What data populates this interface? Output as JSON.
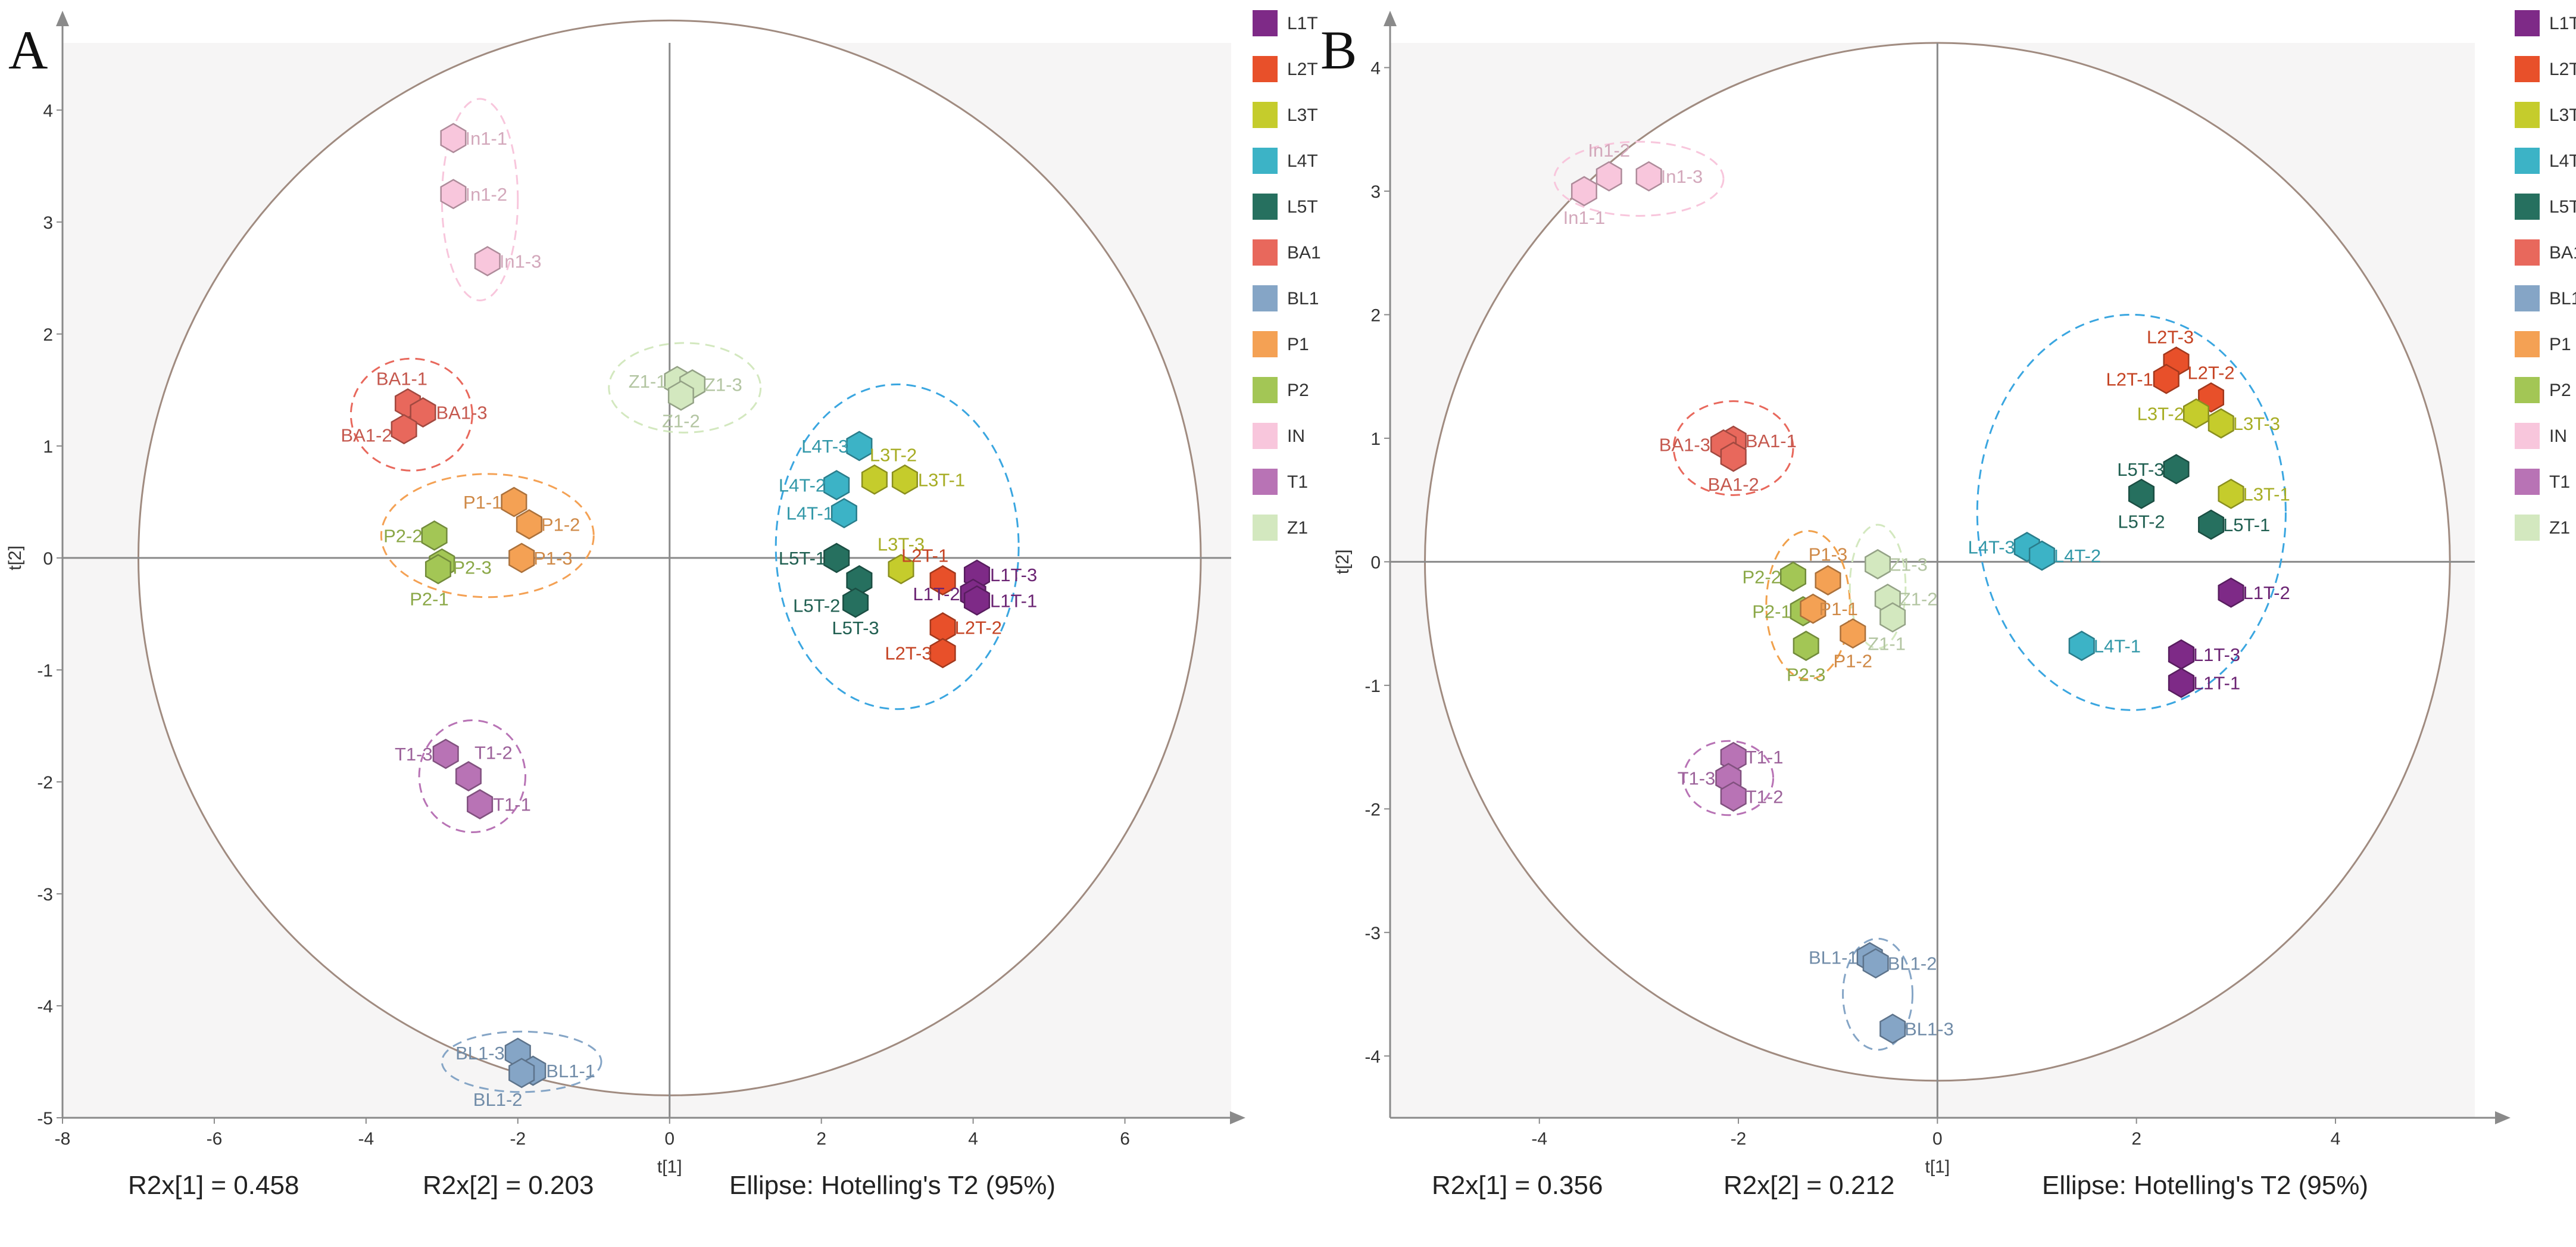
{
  "legend": [
    {
      "label": "L1T",
      "color": "#7e2a87"
    },
    {
      "label": "L2T",
      "color": "#e8502a"
    },
    {
      "label": "L3T",
      "color": "#c5cc2c"
    },
    {
      "label": "L4T",
      "color": "#3cb3c6"
    },
    {
      "label": "L5T",
      "color": "#26705f"
    },
    {
      "label": "BA1",
      "color": "#e8685c"
    },
    {
      "label": "BL1",
      "color": "#85a5c6"
    },
    {
      "label": "P1",
      "color": "#f4a154"
    },
    {
      "label": "P2",
      "color": "#a3c655"
    },
    {
      "label": "IN",
      "color": "#f8c6dc"
    },
    {
      "label": "T1",
      "color": "#b873b5"
    },
    {
      "label": "Z1",
      "color": "#d3e8bf"
    }
  ],
  "chart_data": [
    {
      "panel": "A",
      "type": "scatter",
      "xlabel": "t[1]",
      "ylabel": "t[2]",
      "xlim": [
        -8,
        7.4
      ],
      "ylim": [
        -5,
        4.6
      ],
      "xticks": [
        -8,
        -6,
        -4,
        -2,
        0,
        2,
        4,
        6
      ],
      "yticks": [
        -5,
        -4,
        -3,
        -2,
        -1,
        0,
        1,
        2,
        3,
        4
      ],
      "hotelling_ellipse": {
        "center": [
          0,
          0
        ],
        "radius_x": 7.0,
        "radius_y": 4.8
      },
      "footer": {
        "r2x1": "R2x[1] = 0.458",
        "r2x2": "R2x[2] = 0.203",
        "ellipse": "Ellipse:  Hotelling's   T2  (95%)"
      },
      "group_ellipses": [
        {
          "group": "IN",
          "cx": -2.5,
          "cy": 3.2,
          "rx": 0.5,
          "ry": 0.9
        },
        {
          "group": "BA1",
          "cx": -3.4,
          "cy": 1.28,
          "rx": 0.8,
          "ry": 0.5
        },
        {
          "group": "P1",
          "cx": -2.4,
          "cy": 0.2,
          "rx": 1.4,
          "ry": 0.55
        },
        {
          "group": "Z1",
          "cx": 0.2,
          "cy": 1.52,
          "rx": 1.0,
          "ry": 0.4
        },
        {
          "group": "L",
          "cx": 3.0,
          "cy": 0.1,
          "rx": 1.6,
          "ry": 1.45
        },
        {
          "group": "T1",
          "cx": -2.6,
          "cy": -1.95,
          "rx": 0.7,
          "ry": 0.5
        },
        {
          "group": "BL1",
          "cx": -1.95,
          "cy": -4.5,
          "rx": 1.05,
          "ry": 0.27
        }
      ],
      "points": [
        {
          "label": "In1-1",
          "group": "IN",
          "x": -2.85,
          "y": 3.75,
          "lx": 20,
          "ly": 0,
          "anchor": "start"
        },
        {
          "label": "In1-2",
          "group": "IN",
          "x": -2.85,
          "y": 3.25,
          "lx": 20,
          "ly": 0,
          "anchor": "start"
        },
        {
          "label": "In1-3",
          "group": "IN",
          "x": -2.4,
          "y": 2.65,
          "lx": 20,
          "ly": 0,
          "anchor": "start"
        },
        {
          "label": "BA1-1",
          "group": "BA1",
          "x": -3.45,
          "y": 1.38,
          "lx": -10,
          "ly": -42,
          "anchor": "middle"
        },
        {
          "label": "BA1-3",
          "group": "BA1",
          "x": -3.25,
          "y": 1.3,
          "lx": 22,
          "ly": 0,
          "anchor": "start"
        },
        {
          "label": "BA1-2",
          "group": "BA1",
          "x": -3.5,
          "y": 1.15,
          "lx": -20,
          "ly": 10,
          "anchor": "end"
        },
        {
          "label": "P1-1",
          "group": "P1",
          "x": -2.05,
          "y": 0.5,
          "lx": -20,
          "ly": 0,
          "anchor": "end"
        },
        {
          "label": "P1-2",
          "group": "P1",
          "x": -1.85,
          "y": 0.3,
          "lx": 20,
          "ly": 0,
          "anchor": "start"
        },
        {
          "label": "P1-3",
          "group": "P1",
          "x": -1.95,
          "y": 0.0,
          "lx": 20,
          "ly": 0,
          "anchor": "start"
        },
        {
          "label": "P2-2",
          "group": "P2",
          "x": -3.1,
          "y": 0.2,
          "lx": -20,
          "ly": 0,
          "anchor": "end"
        },
        {
          "label": "P2-3",
          "group": "P2",
          "x": -3.0,
          "y": -0.05,
          "lx": 18,
          "ly": 6,
          "anchor": "start"
        },
        {
          "label": "P2-1",
          "group": "P2",
          "x": -3.05,
          "y": -0.1,
          "lx": -15,
          "ly": 50,
          "anchor": "middle"
        },
        {
          "label": "Z1-1",
          "group": "Z1",
          "x": 0.1,
          "y": 1.58,
          "lx": -18,
          "ly": 0,
          "anchor": "end"
        },
        {
          "label": "Z1-3",
          "group": "Z1",
          "x": 0.3,
          "y": 1.55,
          "lx": 20,
          "ly": 0,
          "anchor": "start"
        },
        {
          "label": "Z1-2",
          "group": "Z1",
          "x": 0.15,
          "y": 1.45,
          "lx": 0,
          "ly": 42,
          "anchor": "middle"
        },
        {
          "label": "L4T-3",
          "group": "L4T",
          "x": 2.5,
          "y": 1.0,
          "lx": -18,
          "ly": 0,
          "anchor": "end"
        },
        {
          "label": "L4T-2",
          "group": "L4T",
          "x": 2.2,
          "y": 0.65,
          "lx": -18,
          "ly": 0,
          "anchor": "end"
        },
        {
          "label": "L4T-1",
          "group": "L4T",
          "x": 2.3,
          "y": 0.4,
          "lx": -18,
          "ly": 0,
          "anchor": "end"
        },
        {
          "label": "L3T-2",
          "group": "L3T",
          "x": 2.7,
          "y": 0.7,
          "lx": -8,
          "ly": -42,
          "anchor": "start"
        },
        {
          "label": "L3T-1",
          "group": "L3T",
          "x": 3.1,
          "y": 0.7,
          "lx": 22,
          "ly": 0,
          "anchor": "start"
        },
        {
          "label": "L3T-3",
          "group": "L3T",
          "x": 3.05,
          "y": -0.1,
          "lx": 0,
          "ly": -42,
          "anchor": "middle"
        },
        {
          "label": "L5T-1",
          "group": "L5T",
          "x": 2.2,
          "y": 0.0,
          "lx": -18,
          "ly": 0,
          "anchor": "end"
        },
        {
          "label": "L5T-2",
          "group": "L5T",
          "x": 2.5,
          "y": -0.2,
          "lx": -32,
          "ly": 42,
          "anchor": "end"
        },
        {
          "label": "L5T-3",
          "group": "L5T",
          "x": 2.45,
          "y": -0.4,
          "lx": 0,
          "ly": 42,
          "anchor": "middle"
        },
        {
          "label": "L2T-1",
          "group": "L2T",
          "x": 3.6,
          "y": -0.2,
          "lx": -30,
          "ly": -42,
          "anchor": "middle"
        },
        {
          "label": "L2T-2",
          "group": "L2T",
          "x": 3.6,
          "y": -0.62,
          "lx": 20,
          "ly": 0,
          "anchor": "start"
        },
        {
          "label": "L2T-3",
          "group": "L2T",
          "x": 3.6,
          "y": -0.85,
          "lx": -18,
          "ly": 0,
          "anchor": "end"
        },
        {
          "label": "L1T-3",
          "group": "L1T",
          "x": 4.05,
          "y": -0.15,
          "lx": 22,
          "ly": 0,
          "anchor": "start"
        },
        {
          "label": "L1T-2",
          "group": "L1T",
          "x": 4.0,
          "y": -0.32,
          "lx": -22,
          "ly": 0,
          "anchor": "end"
        },
        {
          "label": "L1T-1",
          "group": "L1T",
          "x": 4.05,
          "y": -0.38,
          "lx": 22,
          "ly": 0,
          "anchor": "start"
        },
        {
          "label": "T1-3",
          "group": "T1",
          "x": -2.95,
          "y": -1.75,
          "lx": -22,
          "ly": 0,
          "anchor": "end"
        },
        {
          "label": "T1-2",
          "group": "T1",
          "x": -2.65,
          "y": -1.95,
          "lx": 10,
          "ly": -40,
          "anchor": "start"
        },
        {
          "label": "T1-1",
          "group": "T1",
          "x": -2.5,
          "y": -2.2,
          "lx": 22,
          "ly": 0,
          "anchor": "start"
        },
        {
          "label": "BL1-3",
          "group": "BL1",
          "x": -2.0,
          "y": -4.42,
          "lx": -22,
          "ly": 0,
          "anchor": "end"
        },
        {
          "label": "BL1-1",
          "group": "BL1",
          "x": -1.8,
          "y": -4.58,
          "lx": 22,
          "ly": 0,
          "anchor": "start"
        },
        {
          "label": "BL1-2",
          "group": "BL1",
          "x": -1.95,
          "y": -4.6,
          "lx": -40,
          "ly": 44,
          "anchor": "middle"
        }
      ]
    },
    {
      "panel": "B",
      "type": "scatter",
      "xlabel": "t[1]",
      "ylabel": "t[2]",
      "xlim": [
        -5.5,
        5.4
      ],
      "ylim": [
        -4.5,
        4.2
      ],
      "xticks": [
        -4,
        -2,
        0,
        2,
        4
      ],
      "yticks": [
        -4,
        -3,
        -2,
        -1,
        0,
        1,
        2,
        3,
        4
      ],
      "hotelling_ellipse": {
        "center": [
          0,
          0
        ],
        "radius_x": 5.15,
        "radius_y": 4.2
      },
      "footer": {
        "r2x1": "R2x[1] = 0.356",
        "r2x2": "R2x[2] = 0.212",
        "ellipse": "Ellipse:  Hotelling's   T2  (95%)"
      },
      "group_ellipses": [
        {
          "group": "IN",
          "cx": -3.0,
          "cy": 3.1,
          "rx": 0.85,
          "ry": 0.3
        },
        {
          "group": "BA1",
          "cx": -2.05,
          "cy": 0.92,
          "rx": 0.6,
          "ry": 0.38
        },
        {
          "group": "P",
          "cx": -1.3,
          "cy": -0.35,
          "rx": 0.42,
          "ry": 0.6
        },
        {
          "group": "Z1",
          "cx": -0.6,
          "cy": -0.2,
          "rx": 0.28,
          "ry": 0.5
        },
        {
          "group": "L",
          "cx": 1.95,
          "cy": 0.4,
          "rx": 1.55,
          "ry": 1.6
        },
        {
          "group": "T1",
          "cx": -2.1,
          "cy": -1.75,
          "rx": 0.45,
          "ry": 0.3
        },
        {
          "group": "BL1",
          "cx": -0.6,
          "cy": -3.5,
          "rx": 0.35,
          "ry": 0.45
        }
      ],
      "points": [
        {
          "label": "In1-2",
          "group": "IN",
          "x": -3.3,
          "y": 3.12,
          "lx": 0,
          "ly": -44,
          "anchor": "middle"
        },
        {
          "label": "In1-3",
          "group": "IN",
          "x": -2.9,
          "y": 3.12,
          "lx": 20,
          "ly": 0,
          "anchor": "start"
        },
        {
          "label": "In1-1",
          "group": "IN",
          "x": -3.55,
          "y": 3.0,
          "lx": 0,
          "ly": 44,
          "anchor": "middle"
        },
        {
          "label": "BA1-1",
          "group": "BA1",
          "x": -2.05,
          "y": 0.98,
          "lx": 20,
          "ly": 0,
          "anchor": "start"
        },
        {
          "label": "BA1-3",
          "group": "BA1",
          "x": -2.15,
          "y": 0.95,
          "lx": -22,
          "ly": 0,
          "anchor": "end"
        },
        {
          "label": "BA1-2",
          "group": "BA1",
          "x": -2.05,
          "y": 0.85,
          "lx": 0,
          "ly": 46,
          "anchor": "middle"
        },
        {
          "label": "P2-2",
          "group": "P2",
          "x": -1.45,
          "y": -0.12,
          "lx": -20,
          "ly": 0,
          "anchor": "end"
        },
        {
          "label": "P1-3",
          "group": "P1",
          "x": -1.1,
          "y": -0.15,
          "lx": 0,
          "ly": -44,
          "anchor": "middle"
        },
        {
          "label": "P2-1",
          "group": "P2",
          "x": -1.35,
          "y": -0.4,
          "lx": -20,
          "ly": 0,
          "anchor": "end"
        },
        {
          "label": "P1-1",
          "group": "P1",
          "x": -1.25,
          "y": -0.38,
          "lx": 10,
          "ly": 0,
          "anchor": "start"
        },
        {
          "label": "P1-2",
          "group": "P1",
          "x": -0.85,
          "y": -0.58,
          "lx": 0,
          "ly": 46,
          "anchor": "middle"
        },
        {
          "label": "P2-3",
          "group": "P2",
          "x": -1.32,
          "y": -0.68,
          "lx": 0,
          "ly": 48,
          "anchor": "middle"
        },
        {
          "label": "Z1-3",
          "group": "Z1",
          "x": -0.6,
          "y": -0.02,
          "lx": 20,
          "ly": 0,
          "anchor": "start"
        },
        {
          "label": "Z1-2",
          "group": "Z1",
          "x": -0.5,
          "y": -0.3,
          "lx": 20,
          "ly": 0,
          "anchor": "start"
        },
        {
          "label": "Z1-1",
          "group": "Z1",
          "x": -0.45,
          "y": -0.45,
          "lx": -10,
          "ly": 44,
          "anchor": "middle"
        },
        {
          "label": "L2T-3",
          "group": "L2T",
          "x": 2.4,
          "y": 1.62,
          "lx": -10,
          "ly": -42,
          "anchor": "middle"
        },
        {
          "label": "L2T-1",
          "group": "L2T",
          "x": 2.3,
          "y": 1.48,
          "lx": -22,
          "ly": 0,
          "anchor": "end"
        },
        {
          "label": "L2T-2",
          "group": "L2T",
          "x": 2.75,
          "y": 1.33,
          "lx": 0,
          "ly": -42,
          "anchor": "middle"
        },
        {
          "label": "L3T-2",
          "group": "L3T",
          "x": 2.6,
          "y": 1.2,
          "lx": -20,
          "ly": 0,
          "anchor": "end"
        },
        {
          "label": "L3T-3",
          "group": "L3T",
          "x": 2.85,
          "y": 1.12,
          "lx": 20,
          "ly": 0,
          "anchor": "start"
        },
        {
          "label": "L5T-3",
          "group": "L5T",
          "x": 2.4,
          "y": 0.75,
          "lx": -20,
          "ly": 0,
          "anchor": "end"
        },
        {
          "label": "L5T-2",
          "group": "L5T",
          "x": 2.05,
          "y": 0.55,
          "lx": 0,
          "ly": 46,
          "anchor": "middle"
        },
        {
          "label": "L3T-1",
          "group": "L3T",
          "x": 2.95,
          "y": 0.55,
          "lx": 20,
          "ly": 0,
          "anchor": "start"
        },
        {
          "label": "L5T-1",
          "group": "L5T",
          "x": 2.75,
          "y": 0.3,
          "lx": 20,
          "ly": 0,
          "anchor": "start"
        },
        {
          "label": "L4T-3",
          "group": "L4T",
          "x": 0.9,
          "y": 0.12,
          "lx": -20,
          "ly": 0,
          "anchor": "end"
        },
        {
          "label": "L4T-2",
          "group": "L4T",
          "x": 1.05,
          "y": 0.05,
          "lx": 20,
          "ly": 0,
          "anchor": "start"
        },
        {
          "label": "L4T-1",
          "group": "L4T",
          "x": 1.45,
          "y": -0.68,
          "lx": 20,
          "ly": 0,
          "anchor": "start"
        },
        {
          "label": "L1T-2",
          "group": "L1T",
          "x": 2.95,
          "y": -0.25,
          "lx": 20,
          "ly": 0,
          "anchor": "start"
        },
        {
          "label": "L1T-3",
          "group": "L1T",
          "x": 2.45,
          "y": -0.75,
          "lx": 20,
          "ly": 0,
          "anchor": "start"
        },
        {
          "label": "L1T-1",
          "group": "L1T",
          "x": 2.45,
          "y": -0.98,
          "lx": 20,
          "ly": 0,
          "anchor": "start"
        },
        {
          "label": "T1-1",
          "group": "T1",
          "x": -2.05,
          "y": -1.58,
          "lx": 20,
          "ly": 0,
          "anchor": "start"
        },
        {
          "label": "T1-3",
          "group": "T1",
          "x": -2.1,
          "y": -1.75,
          "lx": -22,
          "ly": 0,
          "anchor": "end"
        },
        {
          "label": "T1-2",
          "group": "T1",
          "x": -2.05,
          "y": -1.9,
          "lx": 20,
          "ly": 0,
          "anchor": "start"
        },
        {
          "label": "BL1-1",
          "group": "BL1",
          "x": -0.68,
          "y": -3.2,
          "lx": -20,
          "ly": 0,
          "anchor": "end"
        },
        {
          "label": "BL1-2",
          "group": "BL1",
          "x": -0.62,
          "y": -3.25,
          "lx": 20,
          "ly": 0,
          "anchor": "start"
        },
        {
          "label": "BL1-3",
          "group": "BL1",
          "x": -0.45,
          "y": -3.78,
          "lx": 20,
          "ly": 0,
          "anchor": "start"
        }
      ]
    }
  ]
}
